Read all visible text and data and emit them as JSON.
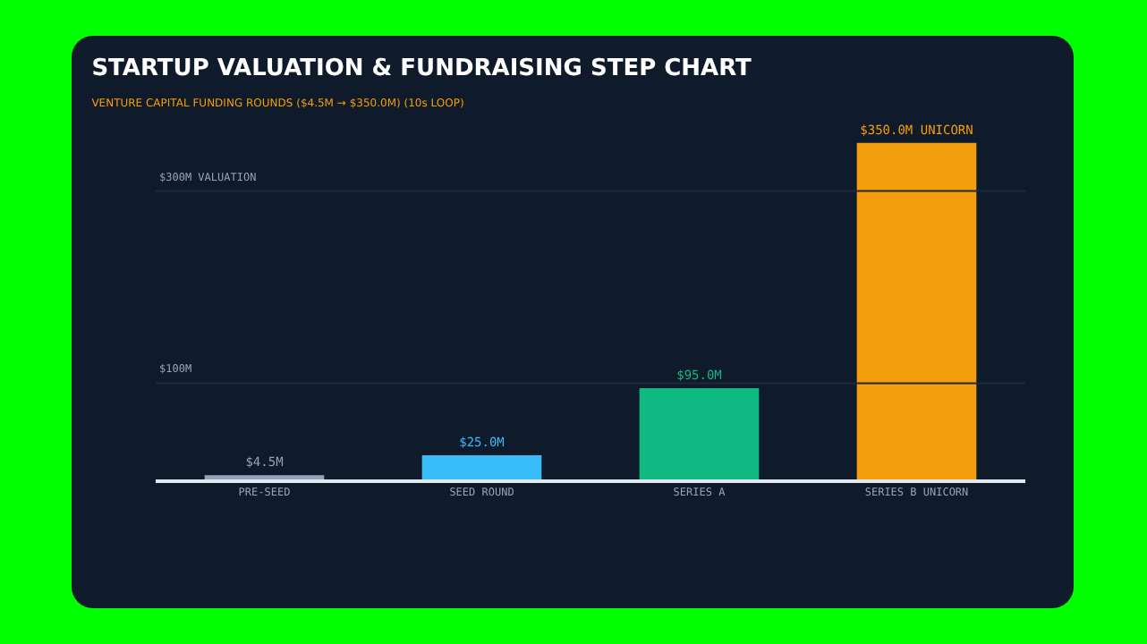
{
  "chart_data": {
    "type": "bar",
    "title": "STARTUP VALUATION & FUNDRAISING STEP CHART",
    "subtitle": "VENTURE CAPITAL FUNDING ROUNDS ($4.5M → $350.0M) (10s LOOP)",
    "categories": [
      "PRE-SEED",
      "SEED ROUND",
      "SERIES A",
      "SERIES B UNICORN"
    ],
    "values": [
      4.5,
      25.0,
      95.0,
      350.0
    ],
    "colors": [
      "#94a3b8",
      "#38bdf8",
      "#10b981",
      "#f59e0b"
    ],
    "value_labels": [
      "$4.5M",
      "$25.0M",
      "$95.0M",
      "$350.0M UNICORN"
    ],
    "tick_labels": "x",
    "ref_lines": [
      {
        "axis": "y",
        "value": 300,
        "label": "$300M VALUATION",
        "color": "#1e293b"
      },
      {
        "axis": "y",
        "value": 100,
        "label": "$100M",
        "color": "#1e293b"
      }
    ],
    "grid": false
  }
}
